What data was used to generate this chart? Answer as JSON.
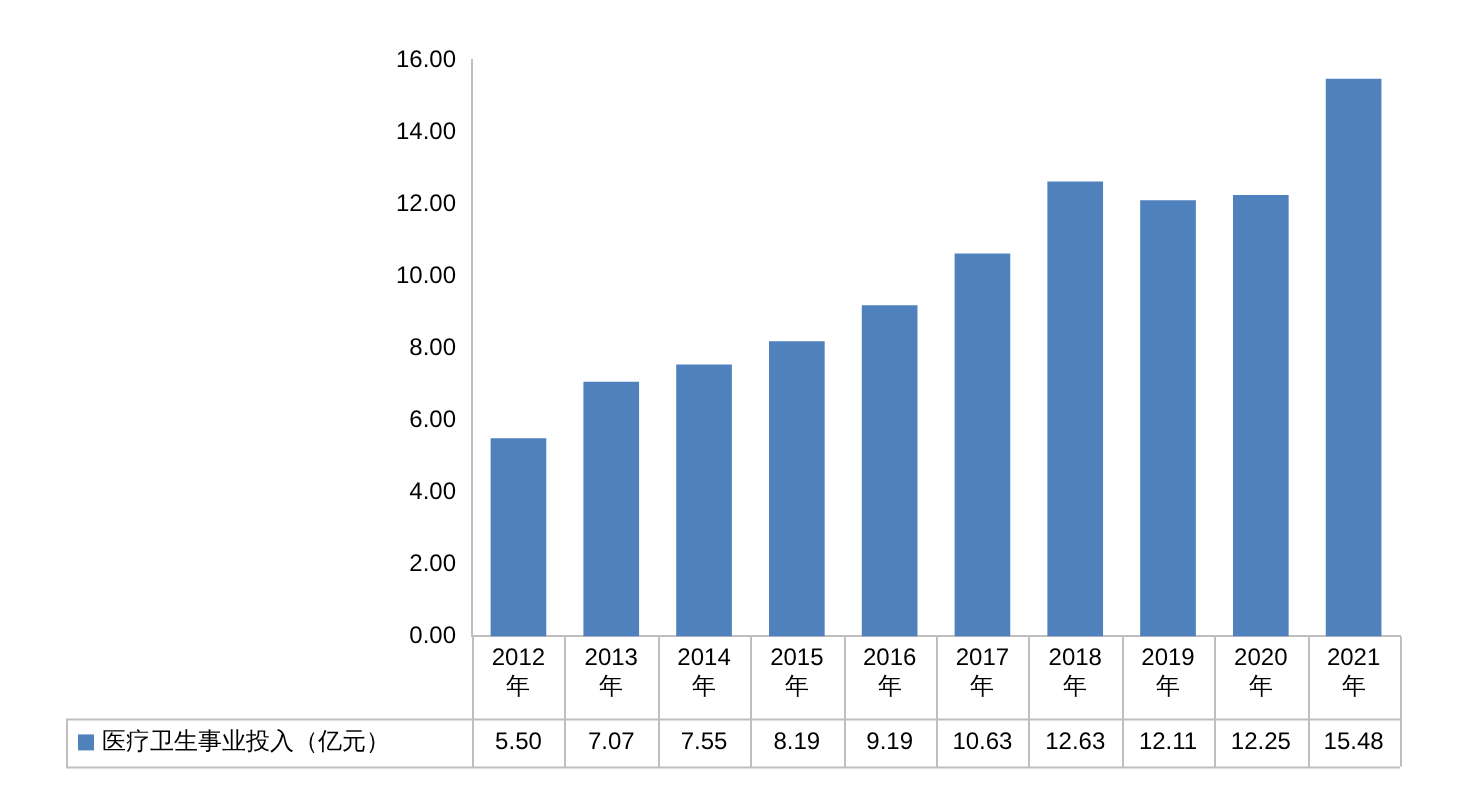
{
  "chart_data": {
    "type": "bar",
    "categories": [
      "2012年",
      "2013年",
      "2014年",
      "2015年",
      "2016年",
      "2017年",
      "2018年",
      "2019年",
      "2020年",
      "2021年"
    ],
    "series": [
      {
        "name": "医疗卫生事业投入（亿元）",
        "color": "#4f81bd",
        "values": [
          5.5,
          7.07,
          7.55,
          8.19,
          9.19,
          10.63,
          12.63,
          12.11,
          12.25,
          15.48
        ],
        "value_labels": [
          "5.50",
          "7.07",
          "7.55",
          "8.19",
          "9.19",
          "10.63",
          "12.63",
          "12.11",
          "12.25",
          "15.48"
        ]
      }
    ],
    "ylim": [
      0,
      16
    ],
    "yticks": [
      {
        "value": 0,
        "label": "0.00"
      },
      {
        "value": 2,
        "label": "2.00"
      },
      {
        "value": 4,
        "label": "4.00"
      },
      {
        "value": 6,
        "label": "6.00"
      },
      {
        "value": 8,
        "label": "8.00"
      },
      {
        "value": 10,
        "label": "10.00"
      },
      {
        "value": 12,
        "label": "12.00"
      },
      {
        "value": 14,
        "label": "14.00"
      },
      {
        "value": 16,
        "label": "16.00"
      }
    ],
    "grid": false,
    "legend": "bottom"
  }
}
